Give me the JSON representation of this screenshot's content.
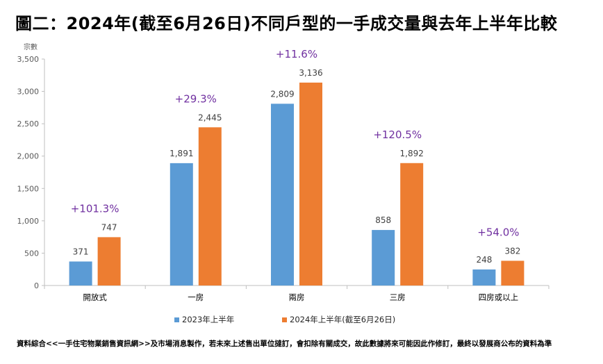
{
  "page": {
    "title": "圖二：2024年(截至6月26日)不同戶型的一手成交量與去年上半年比較",
    "footnote": "資料綜合<<一手住宅物業銷售資訊網>>及市場消息製作，若未來上述售出單位撻訂，會扣除有關成交，故此數據將來可能因此作修訂，最終以發展商公布的資料為準"
  },
  "chart_data": {
    "type": "bar",
    "ylabel": "宗數",
    "ylim": [
      0,
      3500
    ],
    "yticks": [
      0,
      500,
      1000,
      1500,
      2000,
      2500,
      3000,
      3500
    ],
    "ytick_labels": [
      "0",
      "500",
      "1,000",
      "1,500",
      "2,000",
      "2,500",
      "3,000",
      "3,500"
    ],
    "categories": [
      "開放式",
      "一房",
      "兩房",
      "三房",
      "四房或以上"
    ],
    "series": [
      {
        "name": "2023年上半年",
        "color": "#5B9BD5",
        "values": [
          371,
          1891,
          2809,
          858,
          248
        ],
        "labels": [
          "371",
          "1,891",
          "2,809",
          "858",
          "248"
        ]
      },
      {
        "name": "2024年上半年(截至6月26日)",
        "color": "#ED7D31",
        "values": [
          747,
          2445,
          3136,
          1892,
          382
        ],
        "labels": [
          "747",
          "2,445",
          "3,136",
          "1,892",
          "382"
        ]
      }
    ],
    "annotations": [
      "+101.3%",
      "+29.3%",
      "+11.6%",
      "+120.5%",
      "+54.0%"
    ],
    "annotation_color": "#7030A0",
    "legend_position": "bottom",
    "grid": false
  }
}
